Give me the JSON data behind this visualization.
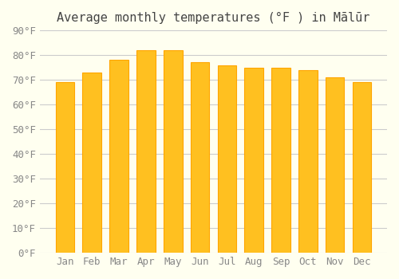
{
  "title": "Average monthly temperatures (°F ) in Mālūr",
  "months": [
    "Jan",
    "Feb",
    "Mar",
    "Apr",
    "May",
    "Jun",
    "Jul",
    "Aug",
    "Sep",
    "Oct",
    "Nov",
    "Dec"
  ],
  "values": [
    69,
    73,
    78,
    82,
    82,
    77,
    76,
    75,
    75,
    74,
    71,
    69
  ],
  "bar_color_face": "#FFC020",
  "bar_color_edge": "#FFA500",
  "background_color": "#FFFFF0",
  "grid_color": "#CCCCCC",
  "ylim": [
    0,
    90
  ],
  "yticks": [
    0,
    10,
    20,
    30,
    40,
    50,
    60,
    70,
    80,
    90
  ],
  "ytick_labels": [
    "0°F",
    "10°F",
    "20°F",
    "30°F",
    "40°F",
    "50°F",
    "60°F",
    "70°F",
    "80°F",
    "90°F"
  ],
  "title_fontsize": 11,
  "tick_fontsize": 9,
  "figsize": [
    5.0,
    3.5
  ],
  "dpi": 100
}
